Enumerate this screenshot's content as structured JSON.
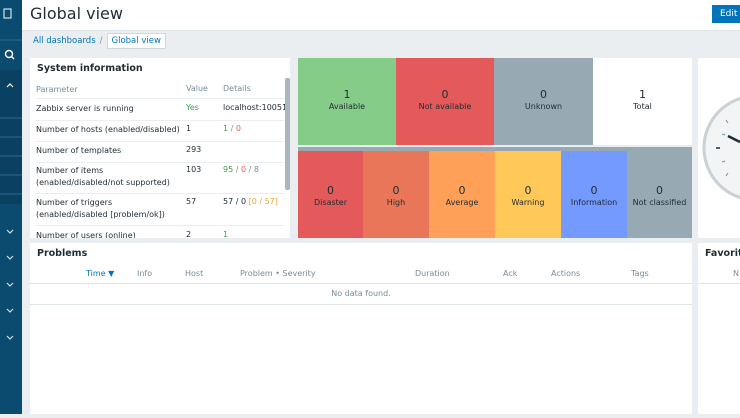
{
  "header": {
    "title": "Global view",
    "button": "Edit d"
  },
  "breadcrumbs": {
    "items": [
      "All dashboards",
      "Global view"
    ],
    "separator": "/"
  },
  "system_information": {
    "title": "System information",
    "columns": [
      "Parameter",
      "Value",
      "Details"
    ],
    "rows": [
      {
        "parameter": "Zabbix server is running",
        "value": "Yes",
        "details": [
          "localhost:10051"
        ]
      },
      {
        "parameter": "Number of hosts (enabled/disabled)",
        "value": 1,
        "details": [
          "1",
          " / ",
          "0"
        ]
      },
      {
        "parameter": "Number of templates",
        "value": 293
      },
      {
        "parameter": "Number of items (enabled/disabled/not supported)",
        "value": 103,
        "details": [
          "95",
          " / ",
          "0",
          " / ",
          "8"
        ]
      },
      {
        "parameter": "Number of triggers (enabled/disabled [problem/ok])",
        "value": 57,
        "details": [
          "57 / 0 ",
          "[0 / 57]"
        ]
      },
      {
        "parameter": "Number of users (online)",
        "value": 2,
        "details": [
          "1"
        ]
      }
    ]
  },
  "host_availability": {
    "tiles": [
      {
        "count": 1,
        "label": "Available"
      },
      {
        "count": 0,
        "label": "Not available"
      },
      {
        "count": 0,
        "label": "Unknown"
      },
      {
        "count": 1,
        "label": "Total"
      }
    ]
  },
  "problems_by_severity": {
    "tiles": [
      {
        "count": 0,
        "label": "Disaster"
      },
      {
        "count": 0,
        "label": "High"
      },
      {
        "count": 0,
        "label": "Average"
      },
      {
        "count": 0,
        "label": "Warning"
      },
      {
        "count": 0,
        "label": "Information"
      },
      {
        "count": 0,
        "label": "Not classified"
      }
    ]
  },
  "problems": {
    "title": "Problems",
    "columns": [
      "Time ▼",
      "Info",
      "Host",
      "Problem • Severity",
      "Duration",
      "Ack",
      "Actions",
      "Tags"
    ],
    "empty": "No data found."
  },
  "favorite": {
    "title": "Favorite",
    "column": "N"
  }
}
